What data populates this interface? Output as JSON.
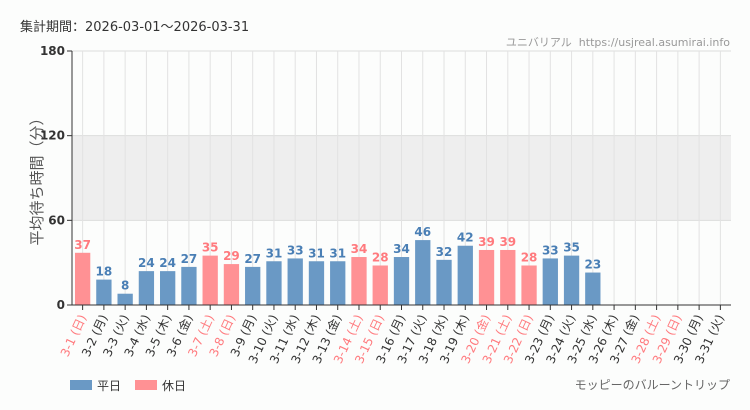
{
  "chart_data": {
    "type": "bar",
    "period_label": "集計期間：2026-03-01～2026-03-31",
    "source": "ユニバリアル  https://usjreal.asumirai.info",
    "attraction": "モッピーのバルーントリップ",
    "ylabel": "平均待ち時間（分）",
    "ylim": [
      0,
      180
    ],
    "yticks": [
      0,
      60,
      120,
      180
    ],
    "shaded_band": [
      60,
      120
    ],
    "grid": true,
    "legend_placement": "bottom-left",
    "colors": {
      "weekday": "#6a99c5",
      "holiday": "#ff9194",
      "weekday_label": "#4a7fb5",
      "holiday_label": "#ff7a7e",
      "band": "#eeeeee"
    },
    "legend": [
      {
        "key": "weekday",
        "label": "平日"
      },
      {
        "key": "holiday",
        "label": "休日"
      }
    ],
    "categories": [
      "3-1 (日)",
      "3-2 (月)",
      "3-3 (火)",
      "3-4 (水)",
      "3-5 (木)",
      "3-6 (金)",
      "3-7 (土)",
      "3-8 (日)",
      "3-9 (月)",
      "3-10 (火)",
      "3-11 (水)",
      "3-12 (木)",
      "3-13 (金)",
      "3-14 (土)",
      "3-15 (日)",
      "3-16 (月)",
      "3-17 (火)",
      "3-18 (水)",
      "3-19 (木)",
      "3-20 (金)",
      "3-21 (土)",
      "3-22 (日)",
      "3-23 (月)",
      "3-24 (火)",
      "3-25 (水)",
      "3-26 (木)",
      "3-27 (金)",
      "3-28 (土)",
      "3-29 (日)",
      "3-30 (月)",
      "3-31 (火)"
    ],
    "holiday": [
      true,
      false,
      false,
      false,
      false,
      false,
      true,
      true,
      false,
      false,
      false,
      false,
      false,
      true,
      true,
      false,
      false,
      false,
      false,
      true,
      true,
      true,
      false,
      false,
      false,
      false,
      false,
      true,
      true,
      false,
      false
    ],
    "values": [
      37,
      18,
      8,
      24,
      24,
      27,
      35,
      29,
      27,
      31,
      33,
      31,
      31,
      34,
      28,
      34,
      46,
      32,
      42,
      39,
      39,
      28,
      33,
      35,
      23,
      null,
      null,
      null,
      null,
      null,
      null
    ]
  }
}
